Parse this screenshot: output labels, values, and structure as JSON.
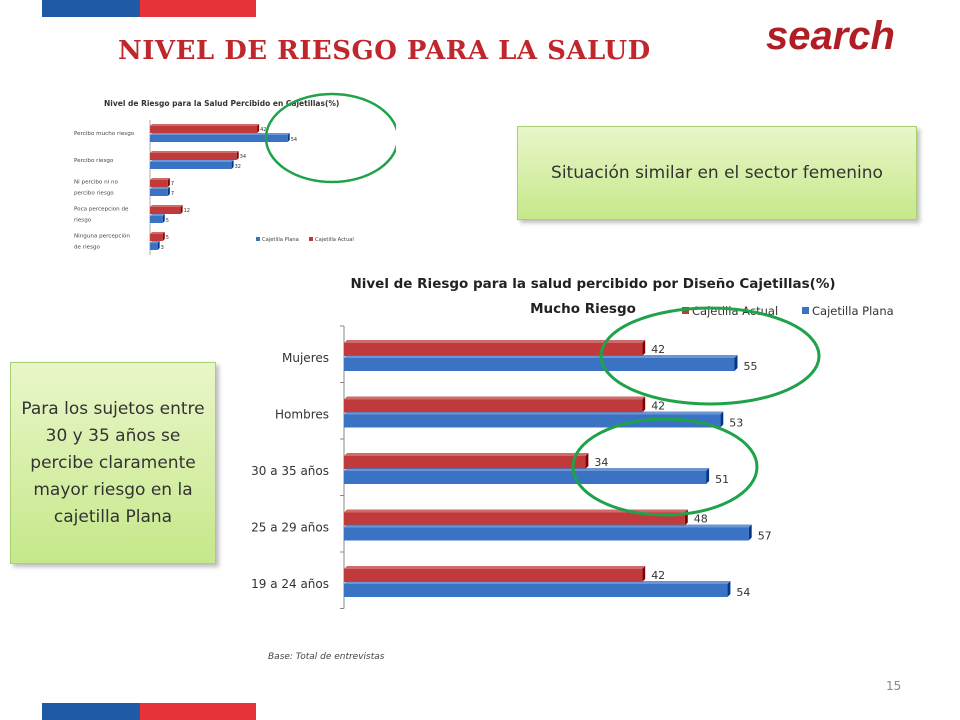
{
  "slide": {
    "title": "NIVEL DE RIESGO PARA LA SALUD",
    "brand": "search",
    "callout_top": "Situación similar en el sector femenino",
    "callout_left": "Para los sujetos entre 30 y 35 años se percibe claramente mayor riesgo en la cajetilla Plana",
    "footnote": "Base: Total  de entrevistas",
    "page_number": "15"
  },
  "colors": {
    "actual": "#c0393b",
    "plana": "#3b73c4",
    "highlight": "#1fa24a",
    "title": "#c0272d",
    "flag_blue": "#1f5aa6",
    "flag_red": "#e63238"
  },
  "chart_data": [
    {
      "type": "bar",
      "orientation": "horizontal",
      "title": "Nivel de Riesgo para la Salud Percibido en Cajetillas(%)",
      "categories": [
        "Percibo mucho riesgo",
        "Percibo riesgo",
        "Ni percibo ni no percibo riesgo",
        "Poca percepción de riesgo",
        "Ninguna percepción de riesgo"
      ],
      "series": [
        {
          "name": "Cajetilla Actual",
          "values": [
            42,
            34,
            7,
            12,
            5
          ]
        },
        {
          "name": "Cajetilla Plana",
          "values": [
            54,
            32,
            7,
            5,
            3
          ]
        }
      ],
      "legend": [
        "Cajetilla Plana",
        "Cajetilla Actual"
      ],
      "legend_position": "bottom-right",
      "xlim": [
        0,
        70
      ]
    },
    {
      "type": "bar",
      "orientation": "horizontal",
      "title": "Nivel de Riesgo para la salud percibido por Diseño Cajetillas(%)",
      "subtitle": "Mucho Riesgo",
      "categories": [
        "Mujeres",
        "Hombres",
        "30 a 35 años",
        "25 a 29 años",
        "19 a 24 años"
      ],
      "series": [
        {
          "name": "Cajetilla Actual",
          "values": [
            42,
            42,
            34,
            48,
            42
          ]
        },
        {
          "name": "Cajetilla Plana",
          "values": [
            55,
            53,
            51,
            57,
            54
          ]
        }
      ],
      "legend_position": "top-right",
      "xlim": [
        0,
        70
      ]
    }
  ]
}
